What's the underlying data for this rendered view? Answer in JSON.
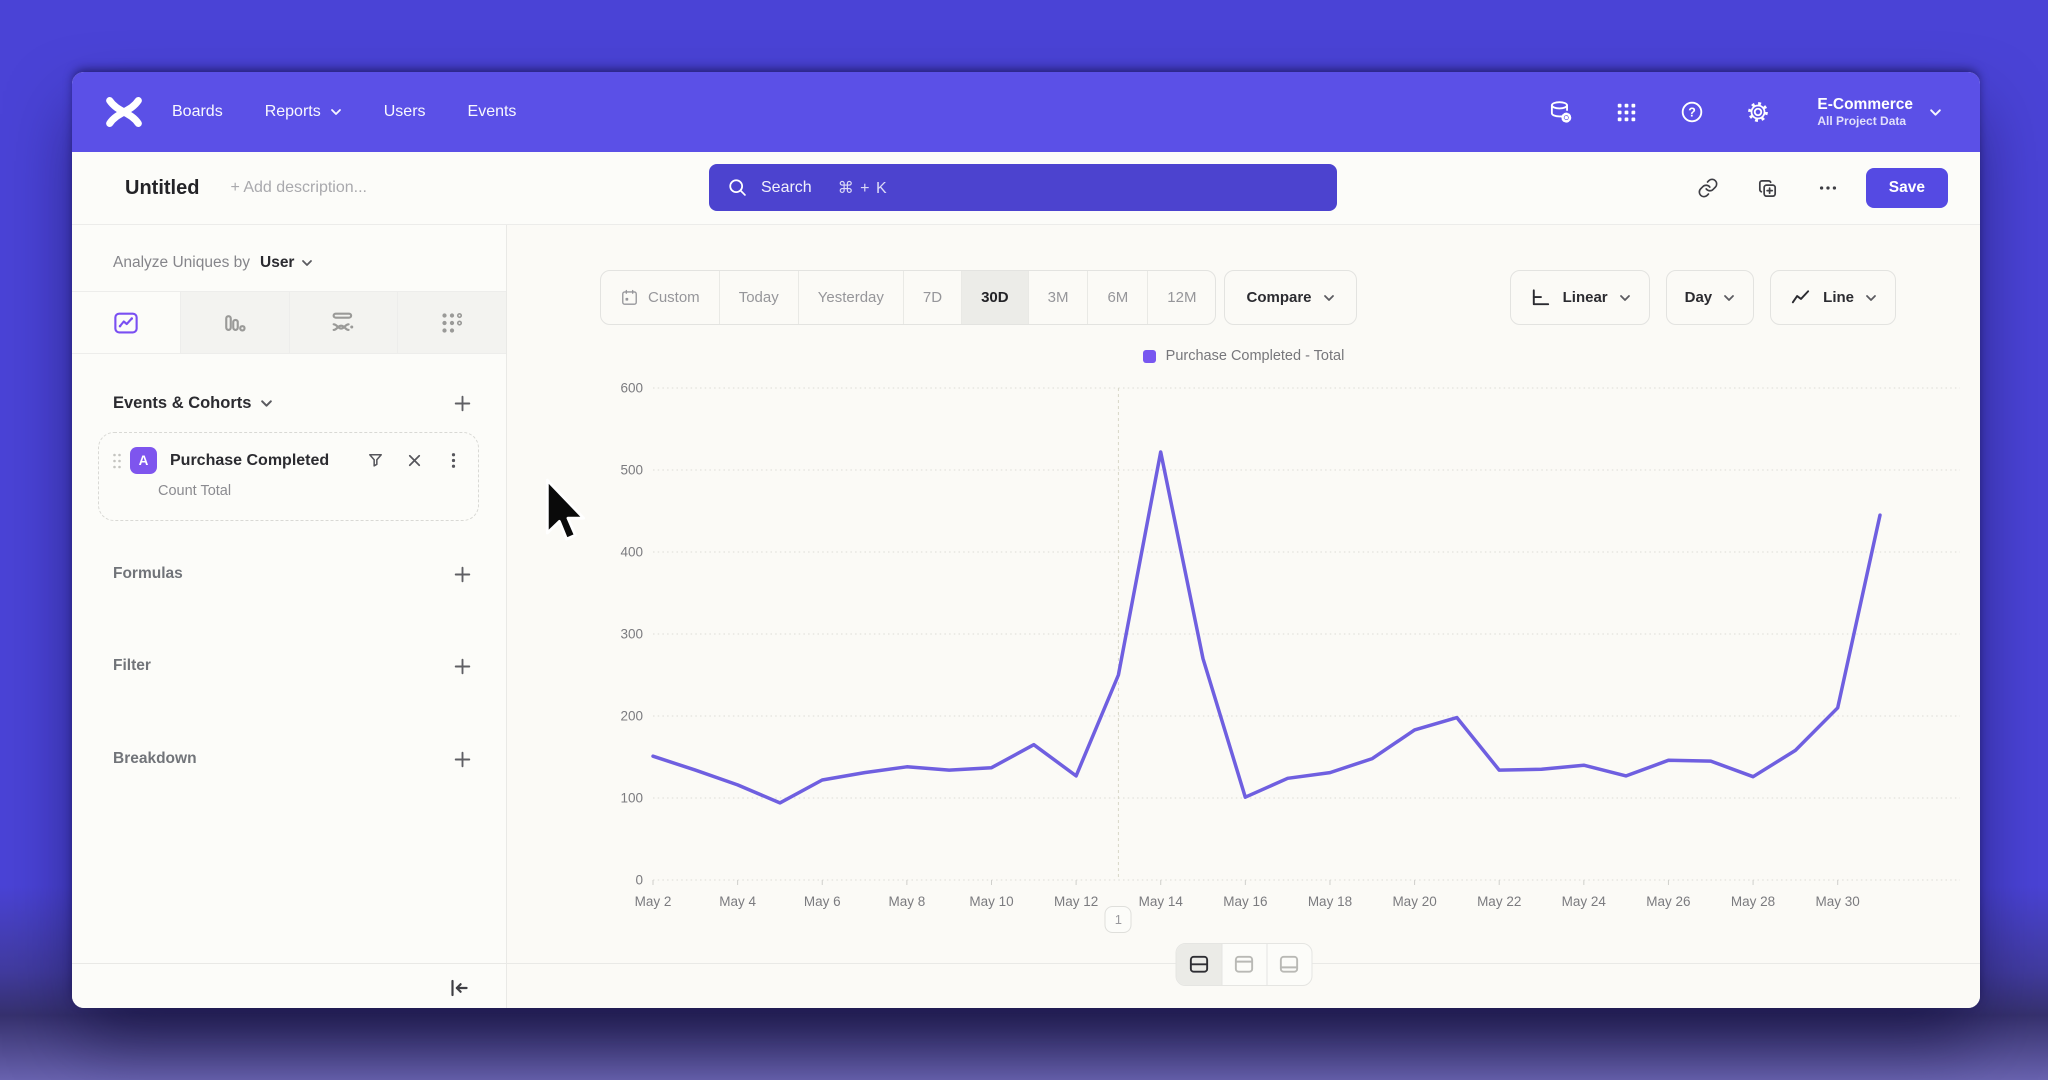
{
  "colors": {
    "nav_purple": "#5b50e7",
    "accent": "#554ae3",
    "line": "#6f5fe0",
    "legend_swatch": "#7857f0",
    "badge": "#7e55ee",
    "selected_tab_icon": "#7a4ff2"
  },
  "topnav": {
    "items": [
      {
        "label": "Boards",
        "chevron": false
      },
      {
        "label": "Reports",
        "chevron": true
      },
      {
        "label": "Users",
        "chevron": false
      },
      {
        "label": "Events",
        "chevron": false
      }
    ],
    "search": {
      "placeholder": "Search",
      "shortcut": "⌘ + K"
    },
    "project": {
      "name": "E-Commerce",
      "scope": "All Project Data"
    }
  },
  "report_header": {
    "title": "Untitled",
    "description_placeholder": "+ Add description...",
    "save_label": "Save"
  },
  "sidebar": {
    "analyze_prefix": "Analyze Uniques by",
    "analyze_value": "User",
    "events_header": "Events & Cohorts",
    "event_card": {
      "badge": "A",
      "name": "Purchase Completed",
      "metric": "Count Total"
    },
    "sections": [
      {
        "label": "Formulas"
      },
      {
        "label": "Filter"
      },
      {
        "label": "Breakdown"
      }
    ]
  },
  "toolbar": {
    "ranges": [
      "Custom",
      "Today",
      "Yesterday",
      "7D",
      "30D",
      "3M",
      "6M",
      "12M"
    ],
    "selected_range": "30D",
    "compare_label": "Compare",
    "scale_label": "Linear",
    "interval_label": "Day",
    "chart_type_label": "Line"
  },
  "chart_data": {
    "type": "line",
    "legend": "Purchase Completed - Total",
    "x": [
      "May 2",
      "May 3",
      "May 4",
      "May 5",
      "May 6",
      "May 7",
      "May 8",
      "May 9",
      "May 10",
      "May 11",
      "May 12",
      "May 13",
      "May 14",
      "May 15",
      "May 16",
      "May 17",
      "May 18",
      "May 19",
      "May 20",
      "May 21",
      "May 22",
      "May 23",
      "May 24",
      "May 25",
      "May 26",
      "May 27",
      "May 28",
      "May 29",
      "May 30",
      "May 31"
    ],
    "series": [
      {
        "name": "Purchase Completed - Total",
        "color": "#6f5fe0",
        "values": [
          151,
          134,
          116,
          94,
          122,
          131,
          138,
          134,
          137,
          165,
          127,
          250,
          522,
          270,
          101,
          124,
          131,
          148,
          183,
          198,
          134,
          135,
          140,
          127,
          146,
          145,
          126,
          158,
          210,
          445
        ]
      }
    ],
    "ylim": [
      0,
      600
    ],
    "yticks": [
      0,
      100,
      200,
      300,
      400,
      500,
      600
    ],
    "x_tick_step": 2,
    "grid": "horizontal-dotted",
    "legend_position": "top-center",
    "annotation": {
      "label": "1",
      "date": "May 13"
    }
  },
  "footer": {
    "layout_options": [
      "split-horizontal",
      "panel-top",
      "panel-bottom"
    ],
    "selected_layout": "split-horizontal"
  }
}
